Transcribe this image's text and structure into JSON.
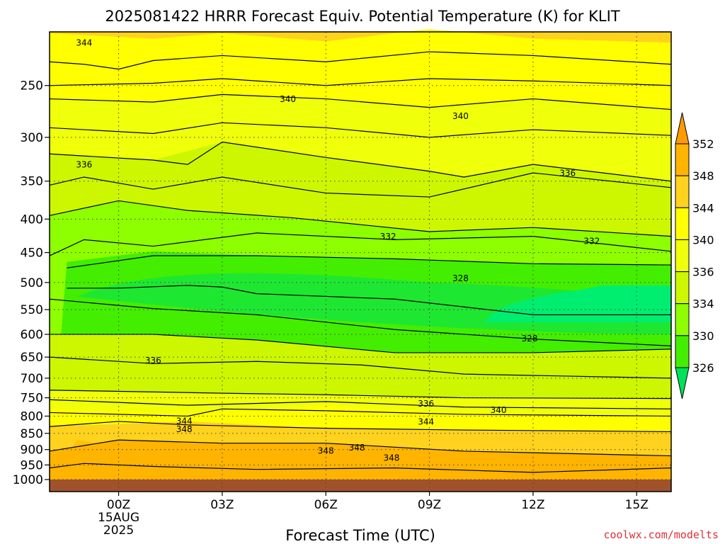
{
  "chart_data": {
    "type": "contour",
    "title": "2025081422 HRRR Forecast Equiv. Potential Temperature (K) for KLIT",
    "xlabel": "Forecast Time (UTC)",
    "ylabel": "",
    "credit": "coolwx.com/modelts",
    "y_scale": "log-pressure",
    "y_reversed": true,
    "y_ticks": [
      250,
      300,
      350,
      400,
      450,
      500,
      550,
      600,
      650,
      700,
      750,
      800,
      850,
      900,
      950,
      1000
    ],
    "y_tick_labels": [
      "250",
      "300",
      "350",
      "400",
      "450",
      "500",
      "550",
      "600",
      "650",
      "700",
      "750",
      "800",
      "850",
      "900",
      "950",
      "1000"
    ],
    "x_ticks": [
      0,
      3,
      6,
      9,
      12,
      15
    ],
    "x_tick_labels": [
      "00Z",
      "03Z",
      "06Z",
      "09Z",
      "12Z",
      "15Z"
    ],
    "x_date_label_lines": [
      "15AUG",
      "2025"
    ],
    "xlim": [
      -2,
      16
    ],
    "grid": true,
    "colorbar": {
      "levels": [
        326,
        330,
        334,
        336,
        340,
        344,
        348,
        352
      ],
      "colors": [
        "#00e25a",
        "#44ee00",
        "#8eff00",
        "#ccf700",
        "#f0ff0a",
        "#ffff00",
        "#ffd21e",
        "#ffb400",
        "#ff9b00"
      ],
      "extend": "both"
    },
    "contour_labels": [
      {
        "text": "344",
        "x": -1.0,
        "p": 215
      },
      {
        "text": "340",
        "x": 4.9,
        "p": 262
      },
      {
        "text": "340",
        "x": 9.9,
        "p": 278
      },
      {
        "text": "336",
        "x": -1.0,
        "p": 330
      },
      {
        "text": "336",
        "x": 13.0,
        "p": 340
      },
      {
        "text": "332",
        "x": 7.8,
        "p": 425
      },
      {
        "text": "332",
        "x": 13.7,
        "p": 432
      },
      {
        "text": "328",
        "x": 9.9,
        "p": 492
      },
      {
        "text": "328",
        "x": 11.9,
        "p": 608
      },
      {
        "text": "336",
        "x": 1.0,
        "p": 657
      },
      {
        "text": "336",
        "x": 8.9,
        "p": 765
      },
      {
        "text": "340",
        "x": 11.0,
        "p": 782
      },
      {
        "text": "344",
        "x": 1.9,
        "p": 813
      },
      {
        "text": "348",
        "x": 1.9,
        "p": 837
      },
      {
        "text": "344",
        "x": 8.9,
        "p": 815
      },
      {
        "text": "348",
        "x": 6.0,
        "p": 903
      },
      {
        "text": "348",
        "x": 6.9,
        "p": 893
      },
      {
        "text": "348",
        "x": 7.9,
        "p": 926
      }
    ]
  },
  "colors": {
    "ground": "#a0522d",
    "background": "#ffffff"
  }
}
